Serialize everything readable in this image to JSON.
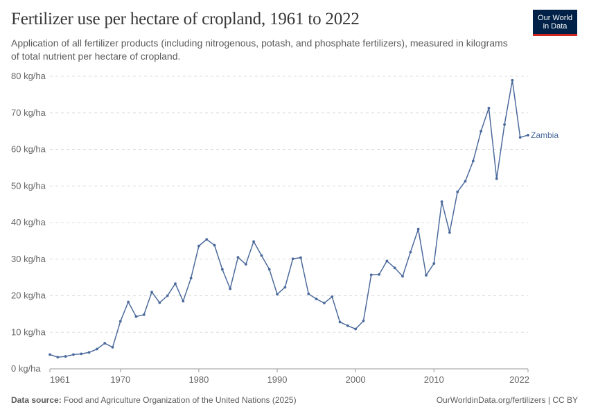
{
  "header": {
    "title": "Fertilizer use per hectare of cropland, 1961 to 2022",
    "subtitle": "Application of all fertilizer products (including nitrogenous, potash, and phosphate fertilizers), measured in kilograms of total nutrient per hectare of cropland."
  },
  "logo": {
    "line1": "Our World",
    "line2": "in Data"
  },
  "footer": {
    "source_label": "Data source:",
    "source_text": "Food and Agriculture Organization of the United Nations (2025)",
    "link_text": "OurWorldinData.org/fertilizers",
    "license_text": "| CC BY"
  },
  "colors": {
    "series": "#4c6a9c",
    "grid": "#dddddd",
    "text": "#666666"
  },
  "chart_data": {
    "type": "line",
    "title": "Fertilizer use per hectare of cropland, 1961 to 2022",
    "xlabel": "",
    "ylabel": "",
    "xlim": [
      1961,
      2022
    ],
    "ylim": [
      0,
      80
    ],
    "y_ticks": [
      0,
      10,
      20,
      30,
      40,
      50,
      60,
      70,
      80
    ],
    "y_tick_labels": [
      "0 kg/ha",
      "10 kg/ha",
      "20 kg/ha",
      "30 kg/ha",
      "40 kg/ha",
      "50 kg/ha",
      "60 kg/ha",
      "70 kg/ha",
      "80 kg/ha"
    ],
    "x_ticks": [
      1961,
      1970,
      1980,
      1990,
      2000,
      2010,
      2022
    ],
    "x_tick_labels": [
      "1961",
      "1970",
      "1980",
      "1990",
      "2000",
      "2010",
      "2022"
    ],
    "grid": true,
    "series": [
      {
        "name": "Zambia",
        "x": [
          1961,
          1962,
          1963,
          1964,
          1965,
          1966,
          1967,
          1968,
          1969,
          1970,
          1971,
          1972,
          1973,
          1974,
          1975,
          1976,
          1977,
          1978,
          1979,
          1980,
          1981,
          1982,
          1983,
          1984,
          1985,
          1986,
          1987,
          1988,
          1989,
          1990,
          1991,
          1992,
          1993,
          1994,
          1995,
          1996,
          1997,
          1998,
          1999,
          2000,
          2001,
          2002,
          2003,
          2004,
          2005,
          2006,
          2007,
          2008,
          2009,
          2010,
          2011,
          2012,
          2013,
          2014,
          2015,
          2016,
          2017,
          2018,
          2019,
          2020,
          2021,
          2022
        ],
        "values": [
          3.9,
          3.2,
          3.4,
          3.9,
          4.1,
          4.5,
          5.4,
          7.0,
          5.9,
          13.0,
          18.3,
          14.3,
          14.8,
          21.0,
          18.1,
          20.0,
          23.3,
          18.5,
          24.8,
          33.6,
          35.4,
          33.8,
          27.2,
          21.9,
          30.5,
          28.6,
          34.8,
          31.0,
          27.2,
          20.4,
          22.3,
          30.1,
          30.4,
          20.5,
          19.1,
          18.0,
          19.7,
          12.8,
          11.8,
          10.9,
          13.1,
          25.7,
          25.8,
          29.5,
          27.6,
          25.3,
          31.9,
          38.2,
          25.6,
          28.8,
          45.7,
          37.3,
          48.4,
          51.3,
          56.8,
          65.0,
          71.3,
          52.0,
          66.8,
          78.9,
          63.3,
          63.9
        ]
      }
    ]
  }
}
